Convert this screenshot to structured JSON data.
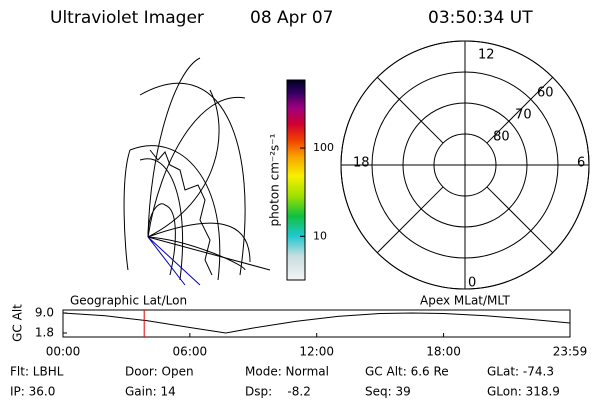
{
  "header": {
    "title": "Ultraviolet Imager",
    "date": "08 Apr 07",
    "time": "03:50:34 UT"
  },
  "colorbar": {
    "label": "photon cm⁻²s⁻¹",
    "log": true,
    "lim": [
      3.2,
      590
    ],
    "ticks": [
      10,
      100
    ]
  },
  "polar": {
    "rlim": [
      90,
      50
    ],
    "rings": [
      50,
      60,
      70,
      80
    ],
    "lat_labels": [
      60,
      70,
      80
    ],
    "mlt_labels": [
      12,
      18,
      6,
      0
    ]
  },
  "strip": {
    "type": "line",
    "ylabel": "GC Alt",
    "left_label": "Geographic Lat/Lon",
    "right_label": "Apex MLat/MLT",
    "x": [
      0,
      2,
      4,
      6,
      7.7,
      9,
      11,
      13,
      15,
      16.5,
      18,
      20,
      22,
      23.98
    ],
    "values": [
      9.0,
      8.0,
      6.2,
      3.8,
      1.8,
      3.6,
      6.0,
      7.8,
      8.8,
      9.0,
      8.8,
      8.0,
      6.8,
      5.4
    ],
    "color": "#000000",
    "cursor_x": 3.84,
    "cursor_color": "#e00000",
    "xlim": [
      0,
      23.98
    ],
    "ylim": [
      1.8,
      9.0
    ],
    "xticks": [
      {
        "value": 0,
        "label": "00:00"
      },
      {
        "value": 6,
        "label": "06:00"
      },
      {
        "value": 12,
        "label": "12:00"
      },
      {
        "value": 18,
        "label": "18:00"
      },
      {
        "value": 23.98,
        "label": "23:59"
      }
    ],
    "yticks": [
      {
        "value": 1.8,
        "label": "1.8"
      },
      {
        "value": 9.0,
        "label": "9.0"
      }
    ]
  },
  "info": [
    [
      "Flt: LBHL",
      "Door: Open",
      "Mode: Normal",
      "GC Alt: 6.6 Re",
      "GLat: -74.3"
    ],
    [
      "IP: 36.0",
      "Gain: 14",
      "Dsp:    -8.2",
      "Seq: 39",
      "GLon: 318.9"
    ]
  ]
}
